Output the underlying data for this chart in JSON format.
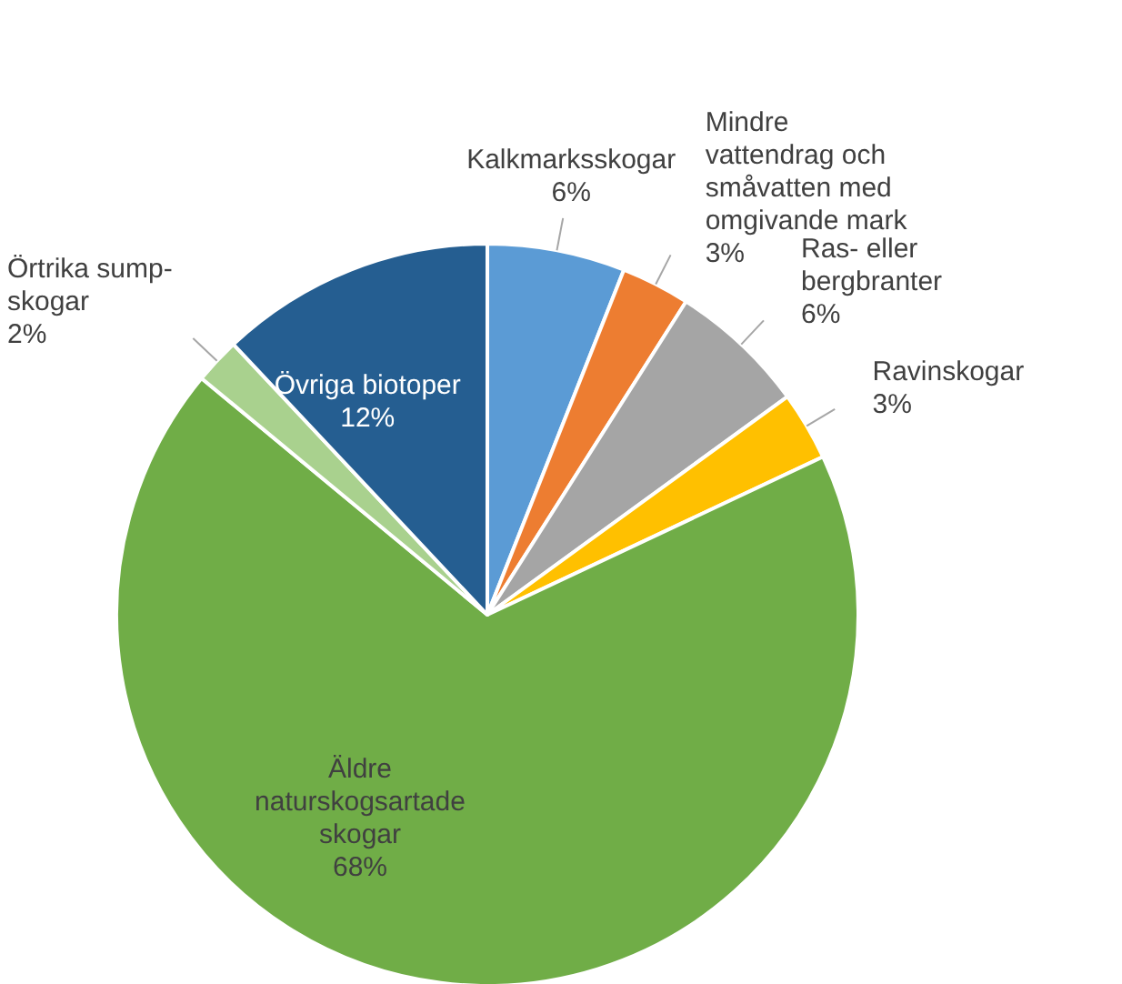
{
  "chart_data": {
    "type": "pie",
    "categories": [
      "Kalkmarksskogar",
      "Mindre\nvattendrag och\nsmåvatten med\nomgivande mark",
      "Ras- eller\nbergbranter",
      "Ravinskogar",
      "Äldre\nnaturskogsartade\nskogar",
      "Örtrika sump-\nskogar",
      "Övriga biotoper"
    ],
    "values": [
      6,
      3,
      6,
      3,
      68,
      2,
      12
    ],
    "value_labels": [
      "6%",
      "3%",
      "6%",
      "3%",
      "68%",
      "2%",
      "12%"
    ],
    "colors": [
      "#5b9bd5",
      "#ed7d31",
      "#a5a5a5",
      "#ffc000",
      "#70ad47",
      "#a9d18e",
      "#255e91"
    ],
    "legend": false
  }
}
